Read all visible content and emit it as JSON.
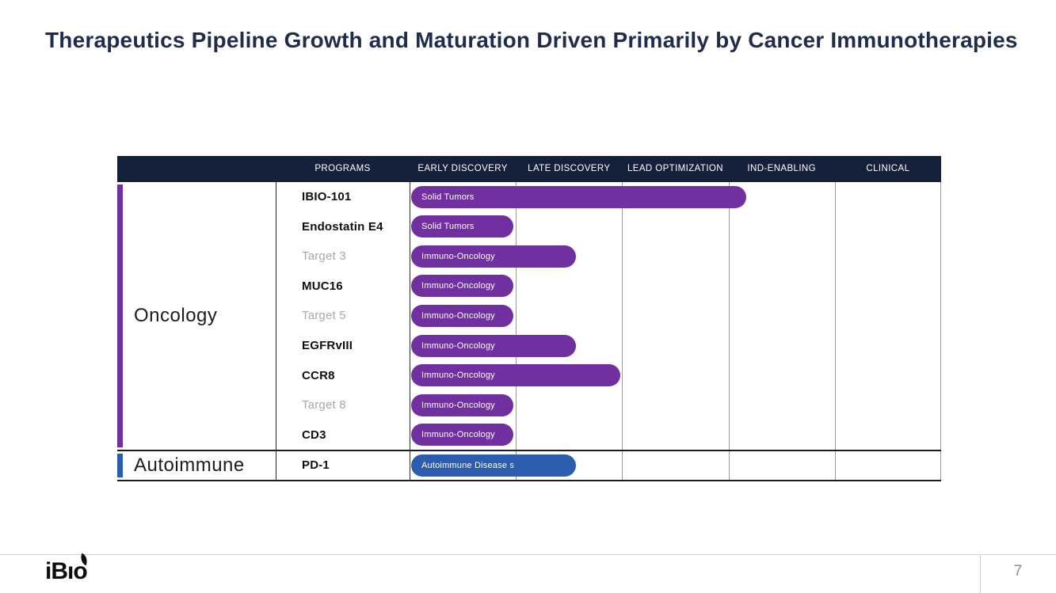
{
  "slide": {
    "title": "Therapeutics Pipeline Growth and Maturation Driven Primarily by Cancer Immunotherapies",
    "page_number": "7",
    "logo_text": "iBıo"
  },
  "chart_data": {
    "type": "bar",
    "variant": "pipeline-gantt",
    "title": "Therapeutics Pipeline Growth and Maturation Driven Primarily by Cancer Immunotherapies",
    "columns": [
      "PROGRAMS",
      "EARLY DISCOVERY",
      "LATE DISCOVERY",
      "LEAD OPTIMIZATION",
      "IND-ENABLING",
      "CLINICAL"
    ],
    "stages": [
      "EARLY DISCOVERY",
      "LATE DISCOVERY",
      "LEAD OPTIMIZATION",
      "IND-ENABLING",
      "CLINICAL"
    ],
    "x_axis_units": "development stages (0-5)",
    "grid": "vertical stage separators",
    "legend": "none",
    "groups": [
      {
        "name": "Oncology",
        "color": "#7030A0",
        "programs": [
          {
            "name": "IBIO-101",
            "named_target": true,
            "indication": "Solid Tumors",
            "stage_reached": "IND-ENABLING",
            "progress_stages": 3.15
          },
          {
            "name": "Endostatin E4",
            "named_target": true,
            "indication": "Solid Tumors",
            "stage_reached": "EARLY DISCOVERY",
            "progress_stages": 0.96
          },
          {
            "name": "Target 3",
            "named_target": false,
            "indication": "Immuno-Oncology",
            "stage_reached": "LATE DISCOVERY",
            "progress_stages": 1.55
          },
          {
            "name": "MUC16",
            "named_target": true,
            "indication": "Immuno-Oncology",
            "stage_reached": "EARLY DISCOVERY",
            "progress_stages": 0.96
          },
          {
            "name": "Target 5",
            "named_target": false,
            "indication": "Immuno-Oncology",
            "stage_reached": "EARLY DISCOVERY",
            "progress_stages": 0.96
          },
          {
            "name": "EGFRvIII",
            "named_target": true,
            "indication": "Immuno-Oncology",
            "stage_reached": "LATE DISCOVERY",
            "progress_stages": 1.55
          },
          {
            "name": "CCR8",
            "named_target": true,
            "indication": "Immuno-Oncology",
            "stage_reached": "LATE DISCOVERY",
            "progress_stages": 1.97
          },
          {
            "name": "Target 8",
            "named_target": false,
            "indication": "Immuno-Oncology",
            "stage_reached": "EARLY DISCOVERY",
            "progress_stages": 0.96
          },
          {
            "name": "CD3",
            "named_target": true,
            "indication": "Immuno-Oncology",
            "stage_reached": "EARLY DISCOVERY",
            "progress_stages": 0.96
          }
        ]
      },
      {
        "name": "Autoimmune",
        "color": "#2B5CAD",
        "programs": [
          {
            "name": "PD-1",
            "named_target": true,
            "indication": "Autoimmune Disease s",
            "stage_reached": "LATE DISCOVERY",
            "progress_stages": 1.55
          }
        ]
      }
    ]
  },
  "colors": {
    "header_bg": "#15213A",
    "title_text": "#1F2C4E",
    "oncology_accent": "#7030A0",
    "autoimmune_accent": "#2B5CAD",
    "muted_program_text": "#A8A8A8",
    "grid_line": "#9B9B9B",
    "dark_line": "#1C1C1C",
    "footer_line": "#CFCFCF",
    "page_number_text": "#8F8F8F"
  }
}
